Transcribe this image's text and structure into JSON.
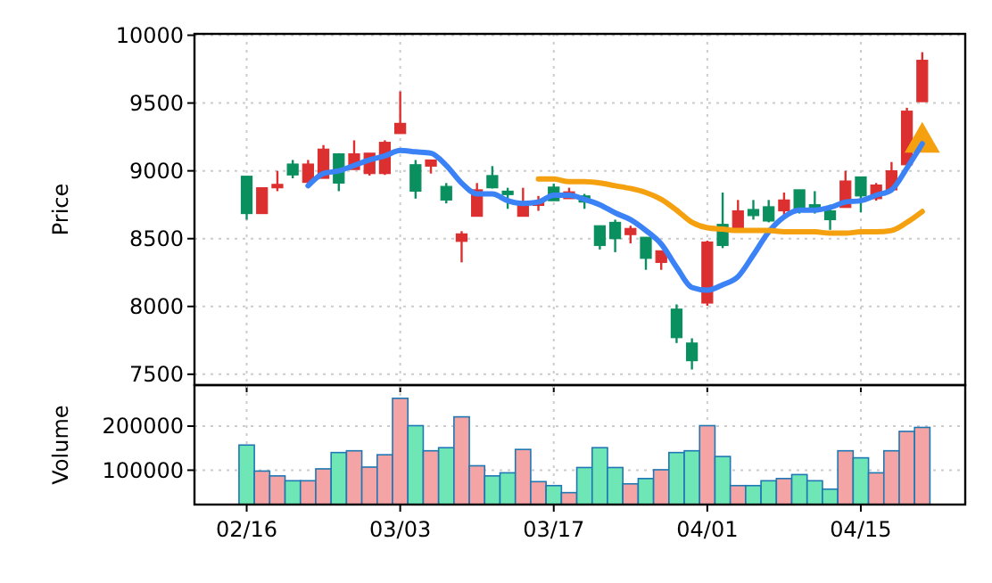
{
  "chart_data": [
    {
      "type": "candlestick",
      "ylabel": "Price",
      "categories": [
        null,
        null,
        null,
        null,
        null,
        null,
        null,
        null,
        null,
        null,
        null,
        null,
        null,
        null,
        null,
        null,
        null,
        null,
        null,
        null,
        null,
        null,
        null,
        null,
        null,
        null,
        null,
        null,
        null,
        null,
        null,
        null,
        null,
        null,
        null,
        null,
        null,
        null,
        null,
        null,
        null,
        null,
        null,
        null,
        null
      ],
      "ohlc": [
        [
          8960,
          8960,
          8640,
          8685
        ],
        [
          8685,
          8875,
          8685,
          8875
        ],
        [
          8875,
          9000,
          8850,
          8900
        ],
        [
          9050,
          9080,
          8945,
          8970
        ],
        [
          8915,
          9080,
          8905,
          9050
        ],
        [
          8945,
          9190,
          8945,
          9160
        ],
        [
          9125,
          9130,
          8850,
          8910
        ],
        [
          9010,
          9225,
          9010,
          9125
        ],
        [
          8980,
          9130,
          8965,
          9130
        ],
        [
          8980,
          9225,
          8970,
          9210
        ],
        [
          9275,
          9585,
          9275,
          9350
        ],
        [
          9045,
          9080,
          8795,
          8850
        ],
        [
          9035,
          9080,
          8980,
          9080
        ],
        [
          8885,
          8910,
          8760,
          8785
        ],
        [
          8480,
          8555,
          8325,
          8535
        ],
        [
          8665,
          8910,
          8665,
          8860
        ],
        [
          8965,
          9035,
          8870,
          8875
        ],
        [
          8850,
          8875,
          8720,
          8825
        ],
        [
          8665,
          8875,
          8665,
          8770
        ],
        [
          8745,
          8815,
          8705,
          8765
        ],
        [
          8880,
          8905,
          8780,
          8780
        ],
        [
          8795,
          8875,
          8795,
          8845
        ],
        [
          8815,
          8830,
          8720,
          8770
        ],
        [
          8595,
          8595,
          8420,
          8450
        ],
        [
          8620,
          8640,
          8400,
          8500
        ],
        [
          8530,
          8595,
          8465,
          8575
        ],
        [
          8510,
          8510,
          8270,
          8355
        ],
        [
          8325,
          8410,
          8270,
          8410
        ],
        [
          7980,
          8015,
          7730,
          7770
        ],
        [
          7730,
          7765,
          7535,
          7600
        ],
        [
          8025,
          8485,
          8005,
          8475
        ],
        [
          8605,
          8840,
          8430,
          8450
        ],
        [
          8575,
          8785,
          8575,
          8705
        ],
        [
          8715,
          8785,
          8640,
          8670
        ],
        [
          8735,
          8785,
          8620,
          8630
        ],
        [
          8705,
          8840,
          8660,
          8785
        ],
        [
          8860,
          8860,
          8685,
          8705
        ],
        [
          8750,
          8850,
          8685,
          8705
        ],
        [
          8705,
          8750,
          8565,
          8640
        ],
        [
          8730,
          9000,
          8730,
          8925
        ],
        [
          8955,
          8955,
          8695,
          8815
        ],
        [
          8795,
          8910,
          8780,
          8895
        ],
        [
          8860,
          9065,
          8860,
          9000
        ],
        [
          9045,
          9465,
          9045,
          9440
        ],
        [
          9510,
          9875,
          9510,
          9815
        ]
      ],
      "colors": [
        "#0a8f5f",
        "#dc2f2f",
        "#dc2f2f",
        "#0a8f5f",
        "#dc2f2f",
        "#dc2f2f",
        "#0a8f5f",
        "#dc2f2f",
        "#dc2f2f",
        "#dc2f2f",
        "#dc2f2f",
        "#0a8f5f",
        "#dc2f2f",
        "#0a8f5f",
        "#dc2f2f",
        "#dc2f2f",
        "#0a8f5f",
        "#0a8f5f",
        "#dc2f2f",
        "#dc2f2f",
        "#0a8f5f",
        "#dc2f2f",
        "#0a8f5f",
        "#0a8f5f",
        "#0a8f5f",
        "#dc2f2f",
        "#0a8f5f",
        "#dc2f2f",
        "#0a8f5f",
        "#0a8f5f",
        "#dc2f2f",
        "#0a8f5f",
        "#dc2f2f",
        "#0a8f5f",
        "#0a8f5f",
        "#dc2f2f",
        "#0a8f5f",
        "#0a8f5f",
        "#0a8f5f",
        "#dc2f2f",
        "#0a8f5f",
        "#dc2f2f",
        "#dc2f2f",
        "#dc2f2f",
        "#dc2f2f"
      ],
      "series": [
        {
          "type": "line",
          "color": "#3b82f6",
          "values": [
            null,
            null,
            null,
            null,
            8890,
            8980,
            9000,
            9040,
            9080,
            9110,
            9150,
            9140,
            9130,
            9040,
            8910,
            8830,
            8830,
            8780,
            8760,
            8770,
            8820,
            8820,
            8790,
            8750,
            8690,
            8640,
            8560,
            8460,
            8290,
            8140,
            8120,
            8160,
            8220,
            8380,
            8550,
            8660,
            8710,
            8710,
            8730,
            8770,
            8780,
            8820,
            8860,
            9020,
            9200
          ]
        },
        {
          "type": "line",
          "color": "#f5a00f",
          "values": [
            null,
            null,
            null,
            null,
            null,
            null,
            null,
            null,
            null,
            null,
            null,
            null,
            null,
            null,
            null,
            null,
            null,
            null,
            null,
            8940,
            8940,
            8920,
            8920,
            8910,
            8890,
            8870,
            8840,
            8790,
            8710,
            8620,
            8580,
            8570,
            8560,
            8560,
            8560,
            8550,
            8550,
            8550,
            8540,
            8540,
            8550,
            8550,
            8560,
            8620,
            8700
          ]
        },
        {
          "type": "scatter",
          "marker": "triangle",
          "color": "#f5a00f",
          "values": [
            null,
            null,
            null,
            null,
            null,
            null,
            null,
            null,
            null,
            null,
            null,
            null,
            null,
            null,
            null,
            null,
            null,
            null,
            null,
            null,
            null,
            null,
            null,
            null,
            null,
            null,
            null,
            null,
            null,
            null,
            null,
            null,
            null,
            null,
            null,
            null,
            null,
            null,
            null,
            null,
            null,
            null,
            null,
            null,
            9210
          ]
        }
      ],
      "ylim": [
        7420,
        10010
      ],
      "yticks": [
        7500,
        8000,
        8500,
        9000,
        9500,
        10000
      ],
      "grid": true,
      "tick_labels": "y"
    },
    {
      "type": "bar",
      "ylabel": "Volume",
      "categories": [
        "02/16",
        null,
        null,
        null,
        null,
        null,
        null,
        null,
        null,
        null,
        "03/03",
        null,
        null,
        null,
        null,
        null,
        null,
        null,
        null,
        null,
        "03/17",
        null,
        null,
        null,
        null,
        null,
        null,
        null,
        null,
        null,
        "04/01",
        null,
        null,
        null,
        null,
        null,
        null,
        null,
        null,
        null,
        "04/15",
        null,
        null,
        null,
        null
      ],
      "values": [
        157000,
        98000,
        87000,
        76000,
        76000,
        103000,
        140000,
        144000,
        107000,
        135000,
        263000,
        201000,
        144000,
        151000,
        221000,
        110000,
        87000,
        94000,
        147000,
        74000,
        65000,
        49000,
        106000,
        151000,
        106000,
        69000,
        81000,
        101000,
        140000,
        144000,
        201000,
        131000,
        65000,
        65000,
        76000,
        81000,
        90000,
        76000,
        57000,
        144000,
        128000,
        94000,
        144000,
        188000,
        197000
      ],
      "colors": [
        "#6ee6b6",
        "#f4a4a4",
        "#f4a4a4",
        "#6ee6b6",
        "#f4a4a4",
        "#f4a4a4",
        "#6ee6b6",
        "#f4a4a4",
        "#f4a4a4",
        "#f4a4a4",
        "#f4a4a4",
        "#6ee6b6",
        "#f4a4a4",
        "#6ee6b6",
        "#f4a4a4",
        "#f4a4a4",
        "#6ee6b6",
        "#6ee6b6",
        "#f4a4a4",
        "#f4a4a4",
        "#6ee6b6",
        "#f4a4a4",
        "#6ee6b6",
        "#6ee6b6",
        "#6ee6b6",
        "#f4a4a4",
        "#6ee6b6",
        "#f4a4a4",
        "#6ee6b6",
        "#6ee6b6",
        "#f4a4a4",
        "#6ee6b6",
        "#f4a4a4",
        "#6ee6b6",
        "#6ee6b6",
        "#f4a4a4",
        "#6ee6b6",
        "#6ee6b6",
        "#6ee6b6",
        "#f4a4a4",
        "#6ee6b6",
        "#f4a4a4",
        "#f4a4a4",
        "#f4a4a4",
        "#f4a4a4"
      ],
      "ylim": [
        22000,
        293000
      ],
      "yticks": [
        100000,
        200000
      ],
      "grid": true
    }
  ]
}
